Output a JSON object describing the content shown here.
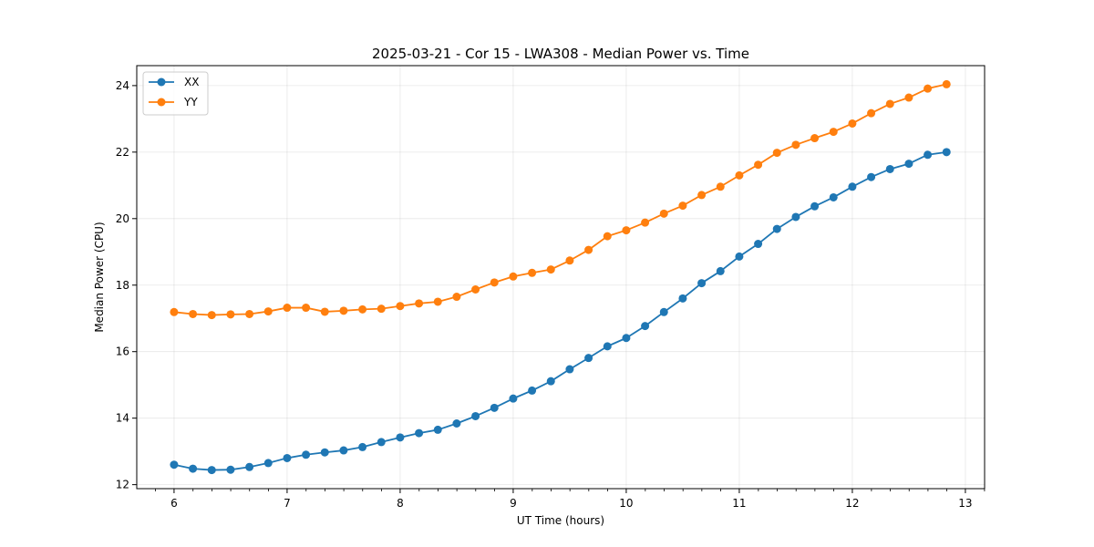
{
  "chart_data": {
    "type": "line",
    "title": "2025-03-21 - Cor 15 - LWA308 - Median Power vs. Time",
    "xlabel": "UT Time (hours)",
    "ylabel": "Median Power (CPU)",
    "xlim": [
      5.67,
      13.17
    ],
    "ylim": [
      11.88,
      24.6
    ],
    "xticks": [
      6,
      7,
      8,
      9,
      10,
      11,
      12,
      13
    ],
    "xtick_labels": [
      "6",
      "7",
      "8",
      "9",
      "10",
      "11",
      "12",
      "13"
    ],
    "x_minor_step": 0.1667,
    "yticks": [
      12,
      14,
      16,
      18,
      20,
      22,
      24
    ],
    "ytick_labels": [
      "12",
      "14",
      "16",
      "18",
      "20",
      "22",
      "24"
    ],
    "grid": true,
    "legend_position": "top-left",
    "x": [
      6.0,
      6.1667,
      6.3333,
      6.5,
      6.6667,
      6.8333,
      7.0,
      7.1667,
      7.3333,
      7.5,
      7.6667,
      7.8333,
      8.0,
      8.1667,
      8.3333,
      8.5,
      8.6667,
      8.8333,
      9.0,
      9.1667,
      9.3333,
      9.5,
      9.6667,
      9.8333,
      10.0,
      10.1667,
      10.3333,
      10.5,
      10.6667,
      10.8333,
      11.0,
      11.1667,
      11.3333,
      11.5,
      11.6667,
      11.8333,
      12.0,
      12.1667,
      12.3333,
      12.5,
      12.6667,
      12.8333
    ],
    "series": [
      {
        "name": "XX",
        "color": "#1f77b4",
        "values": [
          12.6,
          12.48,
          12.44,
          12.45,
          12.53,
          12.65,
          12.8,
          12.9,
          12.97,
          13.03,
          13.13,
          13.28,
          13.42,
          13.55,
          13.65,
          13.84,
          14.06,
          14.31,
          14.59,
          14.83,
          15.11,
          15.47,
          15.81,
          16.16,
          16.41,
          16.77,
          17.19,
          17.6,
          18.06,
          18.42,
          18.86,
          19.24,
          19.69,
          20.05,
          20.37,
          20.64,
          20.96,
          21.25,
          21.49,
          21.65,
          21.92,
          22.0
        ]
      },
      {
        "name": "YY",
        "color": "#ff7f0e",
        "values": [
          17.19,
          17.13,
          17.1,
          17.12,
          17.13,
          17.21,
          17.32,
          17.32,
          17.2,
          17.23,
          17.27,
          17.29,
          17.37,
          17.45,
          17.5,
          17.65,
          17.87,
          18.08,
          18.26,
          18.37,
          18.47,
          18.74,
          19.06,
          19.47,
          19.65,
          19.88,
          20.15,
          20.39,
          20.71,
          20.96,
          21.3,
          21.62,
          21.98,
          22.22,
          22.42,
          22.61,
          22.86,
          23.17,
          23.45,
          23.64,
          23.91,
          24.04
        ]
      }
    ]
  }
}
